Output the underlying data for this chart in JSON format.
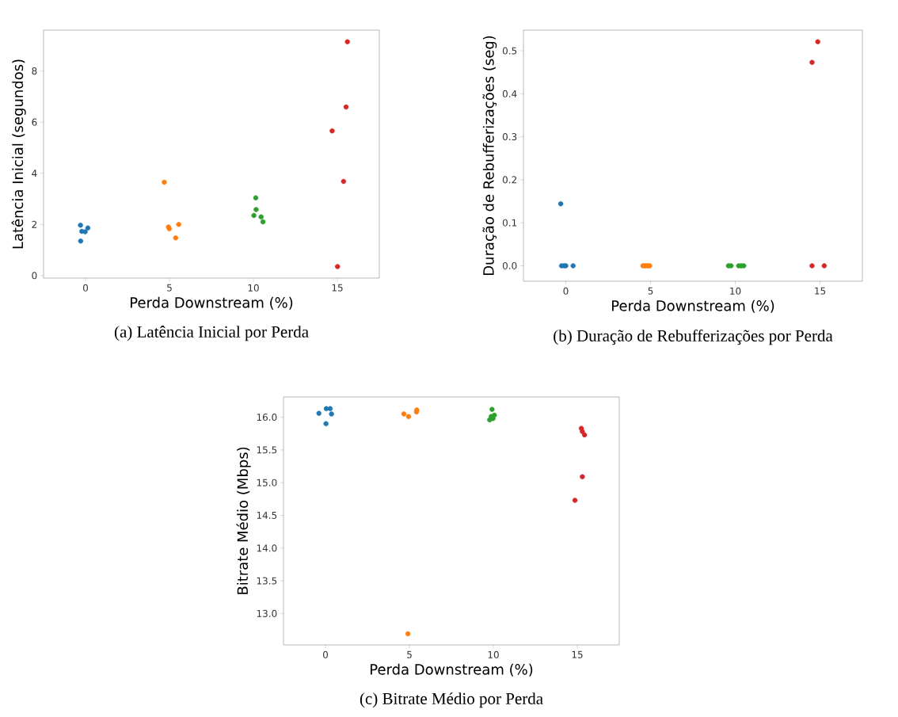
{
  "chart_data": [
    {
      "type": "scatter",
      "title": "(a) Latência Inicial por Perda",
      "xlabel": "Perda Downstream (%)",
      "ylabel": "Latência Inicial (segundos)",
      "marker": "circle",
      "xlim": [
        -2.5,
        17.5
      ],
      "ylim": [
        -0.1,
        9.6
      ],
      "xticks": [
        0,
        5,
        10,
        15
      ],
      "yticks": [
        0,
        2,
        4,
        6,
        8
      ],
      "series": [
        {
          "color": "#1f77b4",
          "x": [
            -0.3,
            -0.22,
            -0.02,
            0.14,
            -0.29
          ],
          "values": [
            1.97,
            1.73,
            1.71,
            1.86,
            1.35
          ]
        },
        {
          "color": "#ff7f0e",
          "x": [
            4.69,
            4.94,
            4.99,
            5.55,
            5.37
          ],
          "values": [
            3.65,
            1.9,
            1.83,
            2.0,
            1.47
          ]
        },
        {
          "color": "#2ca02c",
          "x": [
            10.14,
            10.16,
            10.03,
            10.46,
            10.57
          ],
          "values": [
            3.04,
            2.58,
            2.35,
            2.29,
            2.1
          ]
        },
        {
          "color": "#d62728",
          "x": [
            15.6,
            15.52,
            14.69,
            15.37,
            15.01
          ],
          "values": [
            9.14,
            6.59,
            5.66,
            3.68,
            0.35
          ]
        }
      ]
    },
    {
      "type": "scatter",
      "title": "(b) Duração de Rebufferizações por Perda",
      "xlabel": "Perda Downstream (%)",
      "ylabel": "Duração de Rebufferizações (seg)",
      "marker": "circle",
      "xlim": [
        -2.5,
        17.5
      ],
      "ylim": [
        -0.036,
        0.548
      ],
      "xticks": [
        0,
        5,
        10,
        15
      ],
      "yticks": [
        {
          "value": 0,
          "label": "0.0"
        },
        {
          "value": 0.1,
          "label": "0.1"
        },
        {
          "value": 0.2,
          "label": "0.2"
        },
        {
          "value": 0.3,
          "label": "0.3"
        },
        {
          "value": 0.4,
          "label": "0.4"
        },
        {
          "value": 0.5,
          "label": "0.5"
        }
      ],
      "series": [
        {
          "color": "#1f77b4",
          "x": [
            -0.3,
            -0.25,
            -0.1,
            0.0,
            0.43
          ],
          "values": [
            0.144,
            0,
            0,
            0,
            0
          ]
        },
        {
          "color": "#ff7f0e",
          "x": [
            4.55,
            4.65,
            4.75,
            4.85,
            4.95
          ],
          "values": [
            0,
            0,
            0,
            0,
            0
          ]
        },
        {
          "color": "#2ca02c",
          "x": [
            9.6,
            9.75,
            10.2,
            10.35,
            10.5
          ],
          "values": [
            0,
            0,
            0,
            0,
            0
          ]
        },
        {
          "color": "#d62728",
          "x": [
            14.87,
            14.53,
            14.53,
            15.25
          ],
          "values": [
            0.521,
            0.473,
            0,
            0
          ]
        }
      ]
    },
    {
      "type": "scatter",
      "title": "(c) Bitrate Médio por Perda",
      "xlabel": "Perda Downstream (%)",
      "ylabel": "Bitrate Médio (Mbps)",
      "marker": "circle",
      "xlim": [
        -2.5,
        17.5
      ],
      "ylim": [
        12.52,
        16.31
      ],
      "xticks": [
        0,
        5,
        10,
        15
      ],
      "yticks": [
        {
          "value": 13,
          "label": "13.0"
        },
        {
          "value": 13.5,
          "label": "13.5"
        },
        {
          "value": 14,
          "label": "14.0"
        },
        {
          "value": 14.5,
          "label": "14.5"
        },
        {
          "value": 15,
          "label": "15.0"
        },
        {
          "value": 15.5,
          "label": "15.5"
        },
        {
          "value": 16,
          "label": "16.0"
        }
      ],
      "series": [
        {
          "color": "#1f77b4",
          "x": [
            -0.39,
            0.05,
            0.28,
            0.36,
            0.03
          ],
          "values": [
            16.06,
            16.13,
            16.13,
            16.05,
            15.9
          ]
        },
        {
          "color": "#ff7f0e",
          "x": [
            4.67,
            4.95,
            5.44,
            5.42,
            4.91
          ],
          "values": [
            16.05,
            16.01,
            16.11,
            16.08,
            12.69
          ]
        },
        {
          "color": "#2ca02c",
          "x": [
            9.92,
            10.06,
            9.87,
            9.78,
            9.98
          ],
          "values": [
            16.12,
            16.03,
            16.01,
            15.96,
            15.98
          ]
        },
        {
          "color": "#d62728",
          "x": [
            15.24,
            15.3,
            15.43,
            15.3,
            14.86
          ],
          "values": [
            15.83,
            15.78,
            15.73,
            15.09,
            14.73
          ]
        }
      ]
    }
  ]
}
